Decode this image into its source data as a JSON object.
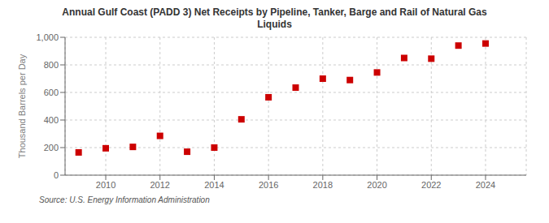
{
  "chart_data": {
    "type": "scatter",
    "title": "Annual Gulf Coast (PADD 3) Net Receipts by Pipeline, Tanker, Barge and Rail of Natural Gas\nLiquids",
    "y_label": "Thousand Barrels per Day",
    "annotations": [
      "Source: U.S. Energy Information Administration"
    ],
    "x": [
      2009,
      2010,
      2011,
      2012,
      2013,
      2014,
      2015,
      2016,
      2017,
      2018,
      2019,
      2020,
      2021,
      2022,
      2023,
      2024
    ],
    "values": [
      165,
      195,
      205,
      285,
      170,
      200,
      405,
      565,
      635,
      700,
      690,
      745,
      850,
      845,
      940,
      955
    ],
    "color": "#cc0000",
    "marker": "square",
    "xlim": [
      2008.5,
      2025.5
    ],
    "xticks": [
      2010,
      2012,
      2014,
      2016,
      2018,
      2020,
      2022,
      2024
    ],
    "ylim": [
      0,
      1000
    ],
    "yticks": [
      0,
      200,
      400,
      600,
      800,
      {
        "value": 1000,
        "label": "1,000"
      }
    ],
    "grid": true
  }
}
